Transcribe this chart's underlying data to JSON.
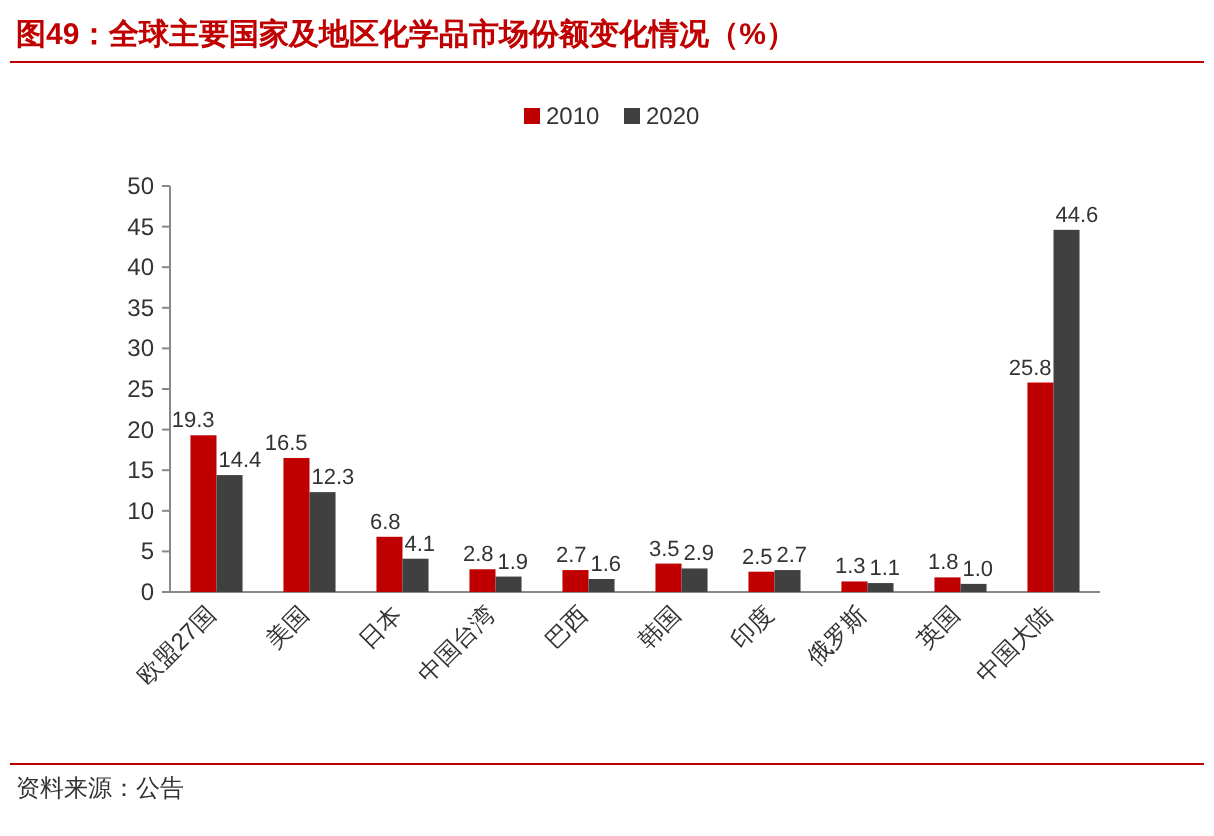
{
  "chart_data": {
    "type": "bar",
    "title": "图49：全球主要国家及地区化学品市场份额变化情况（%）",
    "categories": [
      "欧盟27国",
      "美国",
      "日本",
      "中国台湾",
      "巴西",
      "韩国",
      "印度",
      "俄罗斯",
      "英国",
      "中国大陆"
    ],
    "series": [
      {
        "name": "2010",
        "color": "#c00000",
        "values": [
          19.3,
          16.5,
          6.8,
          2.8,
          2.7,
          3.5,
          2.5,
          1.3,
          1.8,
          25.8
        ],
        "value_labels": [
          "19.3",
          "16.5",
          "6.8",
          "2.8",
          "2.7",
          "3.5",
          "2.5",
          "1.3",
          "1.8",
          "25.8"
        ]
      },
      {
        "name": "2020",
        "color": "#404040",
        "values": [
          14.4,
          12.3,
          4.1,
          1.9,
          1.6,
          2.9,
          2.7,
          1.1,
          1.0,
          44.6
        ],
        "value_labels": [
          "14.4",
          "12.3",
          "4.1",
          "1.9",
          "1.6",
          "2.9",
          "2.7",
          "1.1",
          "1.0",
          "44.6"
        ]
      }
    ],
    "ylim": [
      0,
      50
    ],
    "yticks": [
      0,
      5,
      10,
      15,
      20,
      25,
      30,
      35,
      40,
      45,
      50
    ],
    "legend": "top",
    "annotations": [
      "资料来源：公告"
    ]
  }
}
